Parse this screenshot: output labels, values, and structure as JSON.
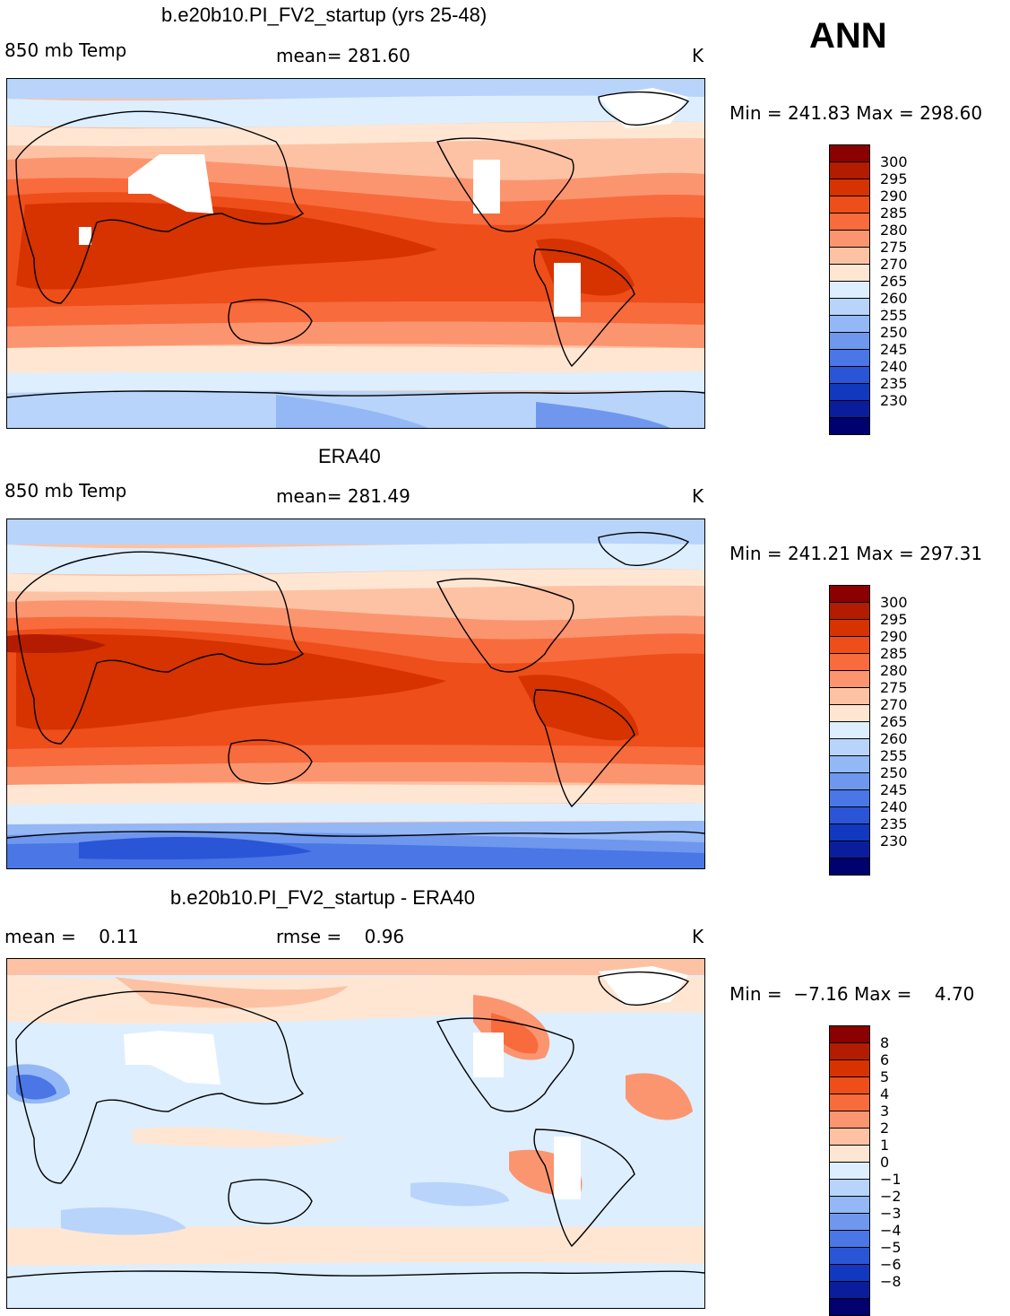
{
  "figure": {
    "season_label": "ANN"
  },
  "panels": [
    {
      "id": "model",
      "title": "b.e20b10.PI_FV2_startup (yrs 25-48)",
      "left_label": "850 mb Temp",
      "center_label": "mean= 281.60",
      "units": "K",
      "minmax": "Min = 241.83 Max = 298.60",
      "colorbar": {
        "colors": [
          "#8b0000",
          "#b31c00",
          "#d63300",
          "#ee4e1a",
          "#f76b3d",
          "#fb9570",
          "#fdc2a4",
          "#fee6d3",
          "#ddeeff",
          "#b8d4fb",
          "#94b7f5",
          "#6f97ee",
          "#4a76e6",
          "#2a55d6",
          "#1238c0",
          "#0a1e9c",
          "#00006e"
        ],
        "labels": [
          "300",
          "295",
          "290",
          "285",
          "280",
          "275",
          "270",
          "265",
          "260",
          "255",
          "250",
          "245",
          "240",
          "235",
          "230"
        ]
      }
    },
    {
      "id": "obs",
      "title": "ERA40",
      "left_label": "850 mb Temp",
      "center_label": "mean= 281.49",
      "units": "K",
      "minmax": "Min = 241.21 Max = 297.31",
      "colorbar": {
        "colors": [
          "#8b0000",
          "#b31c00",
          "#d63300",
          "#ee4e1a",
          "#f76b3d",
          "#fb9570",
          "#fdc2a4",
          "#fee6d3",
          "#ddeeff",
          "#b8d4fb",
          "#94b7f5",
          "#6f97ee",
          "#4a76e6",
          "#2a55d6",
          "#1238c0",
          "#0a1e9c",
          "#00006e"
        ],
        "labels": [
          "300",
          "295",
          "290",
          "285",
          "280",
          "275",
          "270",
          "265",
          "260",
          "255",
          "250",
          "245",
          "240",
          "235",
          "230"
        ]
      }
    },
    {
      "id": "diff",
      "title": "b.e20b10.PI_FV2_startup - ERA40",
      "left_label": "mean =    0.11",
      "center_label": "rmse =    0.96",
      "units": "K",
      "minmax": "Min =  −7.16 Max =    4.70",
      "colorbar": {
        "colors": [
          "#8b0000",
          "#b31c00",
          "#d63300",
          "#ee4e1a",
          "#f76b3d",
          "#fb9570",
          "#fdc2a4",
          "#fee6d3",
          "#ddeeff",
          "#b8d4fb",
          "#94b7f5",
          "#6f97ee",
          "#4a76e6",
          "#2a55d6",
          "#1238c0",
          "#0a1e9c",
          "#00006e"
        ],
        "labels": [
          "8",
          "6",
          "5",
          "4",
          "3",
          "2",
          "1",
          "0",
          "−1",
          "−2",
          "−3",
          "−4",
          "−5",
          "−6",
          "−8"
        ]
      }
    }
  ]
}
